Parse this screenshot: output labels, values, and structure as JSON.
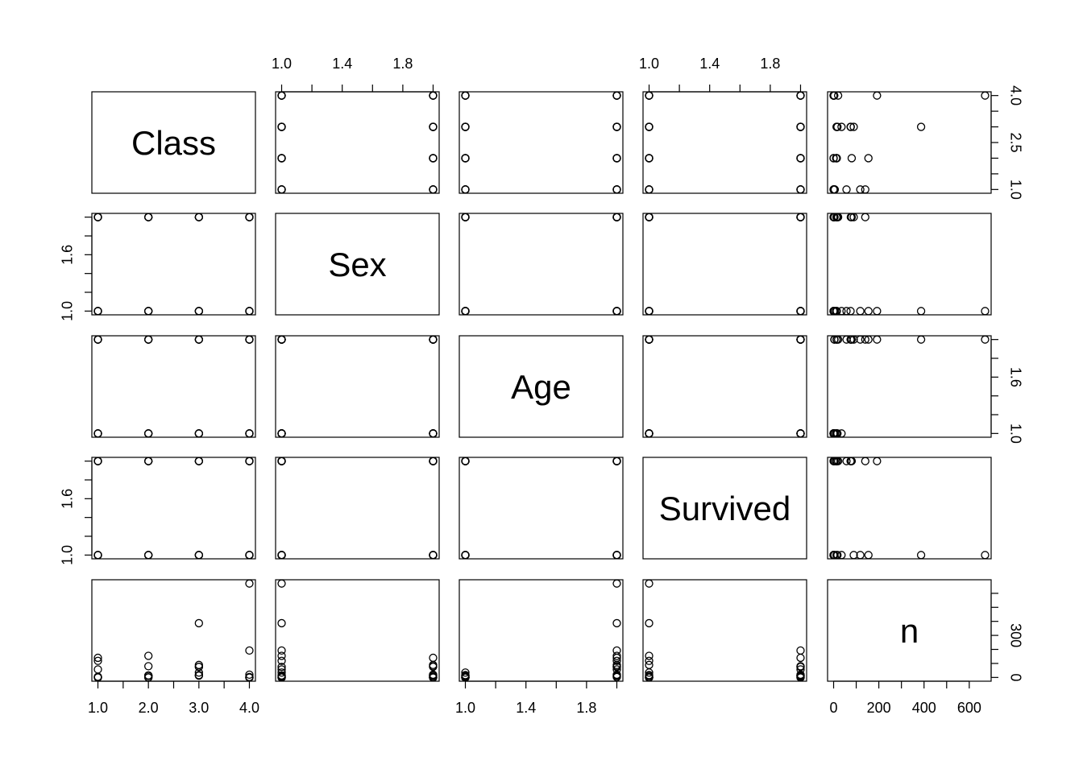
{
  "chart_data": {
    "type": "scatter",
    "subtype": "scatterplot-matrix",
    "variables": [
      "Class",
      "Sex",
      "Age",
      "Survived",
      "n"
    ],
    "ranges": {
      "Class": [
        1,
        4
      ],
      "Sex": [
        1,
        2
      ],
      "Age": [
        1,
        2
      ],
      "Survived": [
        1,
        2
      ],
      "n": [
        0,
        670
      ]
    },
    "ticks": {
      "Class": [
        1.0,
        1.5,
        2.0,
        2.5,
        3.0,
        3.5,
        4.0
      ],
      "Sex": [
        1.0,
        1.2,
        1.4,
        1.6,
        1.8,
        2.0
      ],
      "Age": [
        1.0,
        1.2,
        1.4,
        1.6,
        1.8,
        2.0
      ],
      "Survived": [
        1.0,
        1.2,
        1.4,
        1.6,
        1.8,
        2.0
      ],
      "n": [
        0,
        100,
        200,
        300,
        400,
        500,
        600
      ]
    },
    "tick_labels": {
      "Class": {
        "bottom": [
          "1.0",
          "2.0",
          "3.0",
          "4.0"
        ],
        "right": [
          "1.0",
          "2.5",
          "4.0"
        ]
      },
      "Sex": {
        "top": [
          "1.0",
          "1.4",
          "1.8"
        ],
        "left": [
          "1.0",
          "1.6"
        ]
      },
      "Age": {
        "bottom": [
          "1.0",
          "1.4",
          "1.8"
        ],
        "right": [
          "1.0",
          "1.6"
        ]
      },
      "Survived": {
        "top": [
          "1.0",
          "1.4",
          "1.8"
        ],
        "left": [
          "1.0",
          "1.6"
        ]
      },
      "n": {
        "bottom": [
          "0",
          "200",
          "400",
          "600"
        ],
        "right": [
          "0",
          "300"
        ]
      }
    },
    "tick_label_values": {
      "Class": {
        "bottom": [
          1,
          2,
          3,
          4
        ],
        "right": [
          1,
          2.5,
          4
        ]
      },
      "Sex": {
        "top": [
          1,
          1.4,
          1.8
        ],
        "left": [
          1,
          1.6
        ]
      },
      "Age": {
        "bottom": [
          1,
          1.4,
          1.8
        ],
        "right": [
          1,
          1.6
        ]
      },
      "Survived": {
        "top": [
          1,
          1.4,
          1.8
        ],
        "left": [
          1,
          1.6
        ]
      },
      "n": {
        "bottom": [
          0,
          200,
          400,
          600
        ],
        "right": [
          0,
          300
        ]
      }
    },
    "observations": {
      "Class": [
        1,
        2,
        3,
        4,
        1,
        2,
        3,
        4,
        1,
        2,
        3,
        4,
        1,
        2,
        3,
        4,
        1,
        2,
        3,
        4,
        1,
        2,
        3,
        4,
        1,
        2,
        3,
        4,
        1,
        2,
        3,
        4
      ],
      "Sex": [
        1,
        1,
        1,
        1,
        2,
        2,
        2,
        2,
        1,
        1,
        1,
        1,
        2,
        2,
        2,
        2,
        1,
        1,
        1,
        1,
        2,
        2,
        2,
        2,
        1,
        1,
        1,
        1,
        2,
        2,
        2,
        2
      ],
      "Age": [
        1,
        1,
        1,
        1,
        1,
        1,
        1,
        1,
        2,
        2,
        2,
        2,
        2,
        2,
        2,
        2,
        1,
        1,
        1,
        1,
        1,
        1,
        1,
        1,
        2,
        2,
        2,
        2,
        2,
        2,
        2,
        2
      ],
      "Survived": [
        1,
        1,
        1,
        1,
        1,
        1,
        1,
        1,
        1,
        1,
        1,
        1,
        1,
        1,
        1,
        1,
        2,
        2,
        2,
        2,
        2,
        2,
        2,
        2,
        2,
        2,
        2,
        2,
        2,
        2,
        2,
        2
      ],
      "n": [
        0,
        0,
        35,
        0,
        0,
        0,
        17,
        0,
        118,
        154,
        387,
        670,
        4,
        13,
        89,
        3,
        5,
        11,
        13,
        0,
        1,
        13,
        14,
        0,
        57,
        14,
        75,
        192,
        140,
        80,
        76,
        20
      ]
    },
    "grid": false,
    "legend": "none"
  }
}
